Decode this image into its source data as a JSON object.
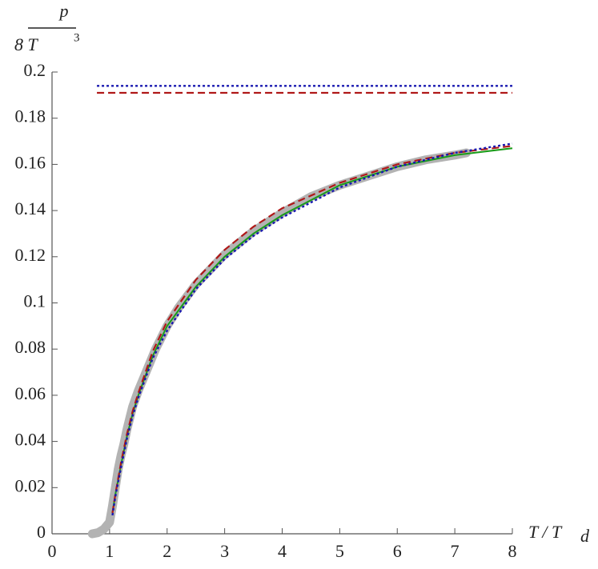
{
  "chart_data": {
    "type": "line",
    "y_label": {
      "numerator": "p",
      "denominator": "8 T",
      "denominator_exponent": "3"
    },
    "x_label": {
      "main": "T / T",
      "subscript": "d"
    },
    "xlim": [
      0,
      8
    ],
    "ylim": [
      0,
      0.2
    ],
    "xticks": [
      0,
      1,
      2,
      3,
      4,
      5,
      6,
      7,
      8
    ],
    "yticks": [
      0,
      0.02,
      0.04,
      0.06,
      0.08,
      0.1,
      0.12,
      0.14,
      0.16,
      0.18,
      0.2
    ],
    "series": [
      {
        "color": "#b3b3b3",
        "style": "thick",
        "x": [
          0.7,
          0.8,
          0.9,
          1.0,
          1.05,
          1.1,
          1.15,
          1.2,
          1.25,
          1.3,
          1.35,
          1.4,
          1.5,
          1.6,
          1.7,
          1.8,
          1.9,
          2.0,
          2.2,
          2.5,
          3,
          3.5,
          4,
          4.5,
          5,
          5.5,
          6,
          6.5,
          7,
          7.2
        ],
        "values": [
          0,
          0.0005,
          0.002,
          0.005,
          0.012,
          0.02,
          0.028,
          0.034,
          0.039,
          0.045,
          0.05,
          0.055,
          0.062,
          0.068,
          0.074,
          0.08,
          0.085,
          0.09,
          0.098,
          0.108,
          0.121,
          0.131,
          0.139,
          0.146,
          0.151,
          0.155,
          0.159,
          0.162,
          0.164,
          0.165
        ]
      },
      {
        "color": "#1a9c1a",
        "style": "solid",
        "x": [
          1.05,
          1.1,
          1.2,
          1.3,
          1.4,
          1.5,
          1.75,
          2,
          2.5,
          3,
          3.5,
          4,
          5,
          6,
          7,
          8
        ],
        "values": [
          0.009,
          0.017,
          0.03,
          0.042,
          0.052,
          0.06,
          0.077,
          0.09,
          0.107,
          0.12,
          0.13,
          0.138,
          0.151,
          0.159,
          0.164,
          0.167
        ]
      },
      {
        "color": "#b01818",
        "style": "dashed",
        "x": [
          1.05,
          1.1,
          1.2,
          1.3,
          1.4,
          1.5,
          1.75,
          2,
          2.5,
          3,
          3.5,
          4,
          5,
          6,
          7,
          8
        ],
        "values": [
          0.009,
          0.017,
          0.031,
          0.043,
          0.053,
          0.061,
          0.079,
          0.092,
          0.11,
          0.123,
          0.133,
          0.141,
          0.152,
          0.16,
          0.165,
          0.168
        ]
      },
      {
        "color": "#1818b0",
        "style": "dotted",
        "x": [
          1.05,
          1.1,
          1.2,
          1.3,
          1.4,
          1.5,
          1.75,
          2,
          2.5,
          3,
          3.5,
          4,
          5,
          6,
          7,
          8
        ],
        "values": [
          0.008,
          0.016,
          0.029,
          0.041,
          0.051,
          0.059,
          0.076,
          0.088,
          0.106,
          0.119,
          0.129,
          0.137,
          0.15,
          0.159,
          0.165,
          0.169
        ]
      },
      {
        "color": "#b01818",
        "style": "dashed",
        "x": [
          0.78,
          8
        ],
        "values": [
          0.191,
          0.191
        ]
      },
      {
        "color": "#1818b0",
        "style": "dotted",
        "x": [
          0.78,
          8
        ],
        "values": [
          0.194,
          0.194
        ]
      }
    ]
  }
}
